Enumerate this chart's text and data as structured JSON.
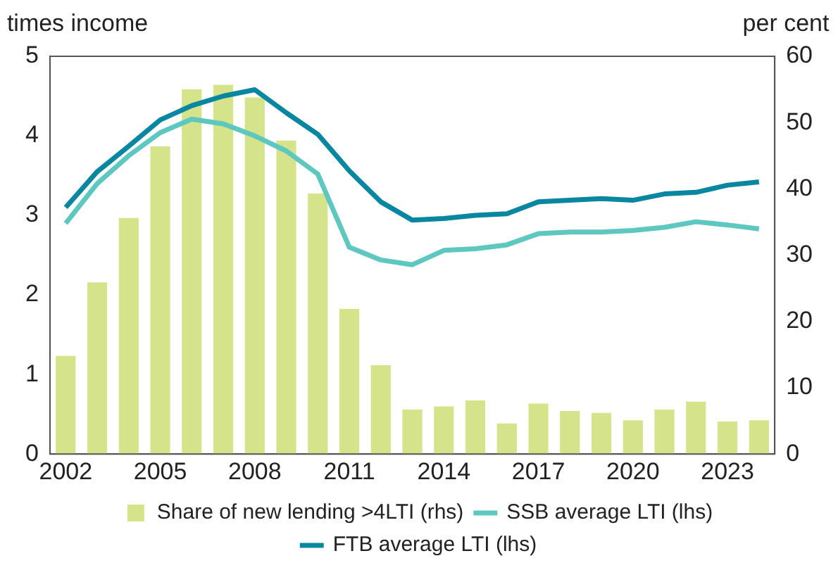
{
  "chart_data": {
    "type": "bar",
    "ylabel": "times income",
    "y2label": "per cent",
    "categories": [
      "2002",
      null,
      null,
      "2005",
      null,
      null,
      "2008",
      null,
      null,
      "2011",
      null,
      null,
      "2014",
      null,
      null,
      "2017",
      null,
      null,
      "2020",
      null,
      null,
      "2023",
      null
    ],
    "series": [
      {
        "name": "Share of new lending >4LTI (rhs)",
        "axis": "y2",
        "color": "#d5e38a",
        "values": [
          14.8,
          25.9,
          35.6,
          46.4,
          55,
          55.7,
          53.8,
          47.3,
          39.3,
          21.9,
          13.4,
          6.7,
          7.2,
          8.1,
          4.6,
          7.6,
          6.5,
          6.2,
          5.1,
          6.7,
          7.9,
          4.9,
          5.1
        ]
      },
      {
        "name": "SSB average LTI (lhs)",
        "type": "line",
        "color": "#5ec8c0",
        "values": [
          2.9,
          3.4,
          3.75,
          4.04,
          4.21,
          4.15,
          4.0,
          3.81,
          3.52,
          2.6,
          2.44,
          2.38,
          2.56,
          2.58,
          2.63,
          2.77,
          2.79,
          2.79,
          2.81,
          2.85,
          2.92,
          2.88,
          2.83
        ]
      },
      {
        "name": "FTB average LTI (lhs)",
        "type": "line",
        "color": "#0a87a0",
        "values": [
          3.1,
          3.55,
          3.87,
          4.2,
          4.38,
          4.5,
          4.58,
          4.29,
          4.02,
          3.56,
          3.17,
          2.94,
          2.96,
          3.0,
          3.02,
          3.17,
          3.19,
          3.21,
          3.19,
          3.27,
          3.29,
          3.38,
          3.42
        ]
      }
    ],
    "ylim": [
      0,
      5
    ],
    "yticks": [
      0,
      1,
      2,
      3,
      4,
      5
    ],
    "y2lim": [
      0,
      60
    ],
    "y2ticks": [
      0,
      10,
      20,
      30,
      40,
      50,
      60
    ],
    "grid": false,
    "legend": "bottom",
    "marker": "none",
    "line_style": "solid"
  }
}
